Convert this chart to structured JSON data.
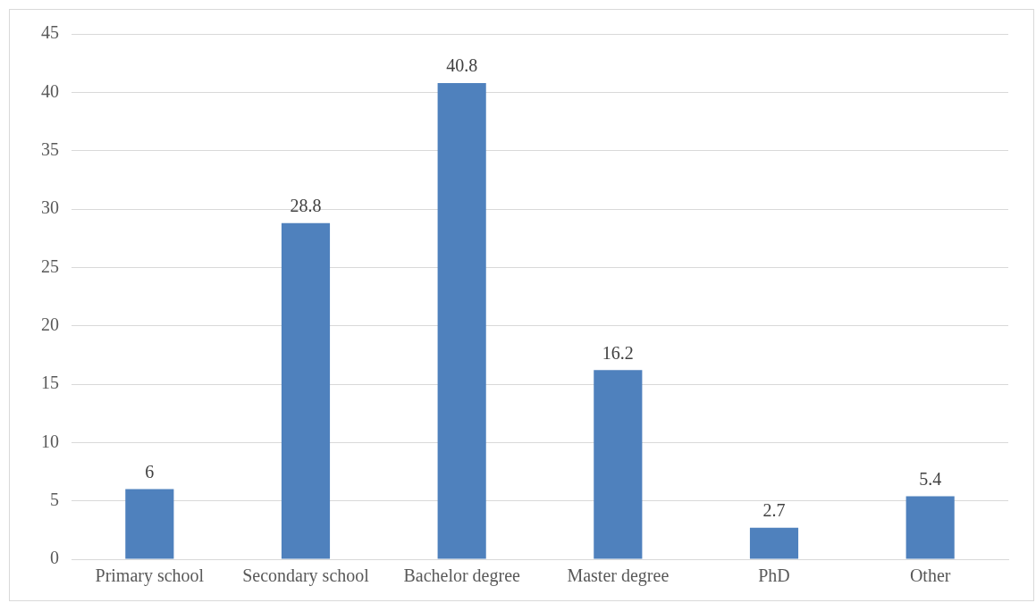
{
  "chart_data": {
    "type": "bar",
    "categories": [
      "Primary school",
      "Secondary school",
      "Bachelor degree",
      "Master degree",
      "PhD",
      "Other"
    ],
    "values": [
      6,
      28.8,
      40.8,
      16.2,
      2.7,
      5.4
    ],
    "color": "#4f81bd",
    "ylim": [
      0,
      45
    ],
    "yticks": [
      0,
      5,
      10,
      15,
      20,
      25,
      30,
      35,
      40,
      45
    ],
    "grid": "y",
    "data_labels": true,
    "legend": false
  }
}
